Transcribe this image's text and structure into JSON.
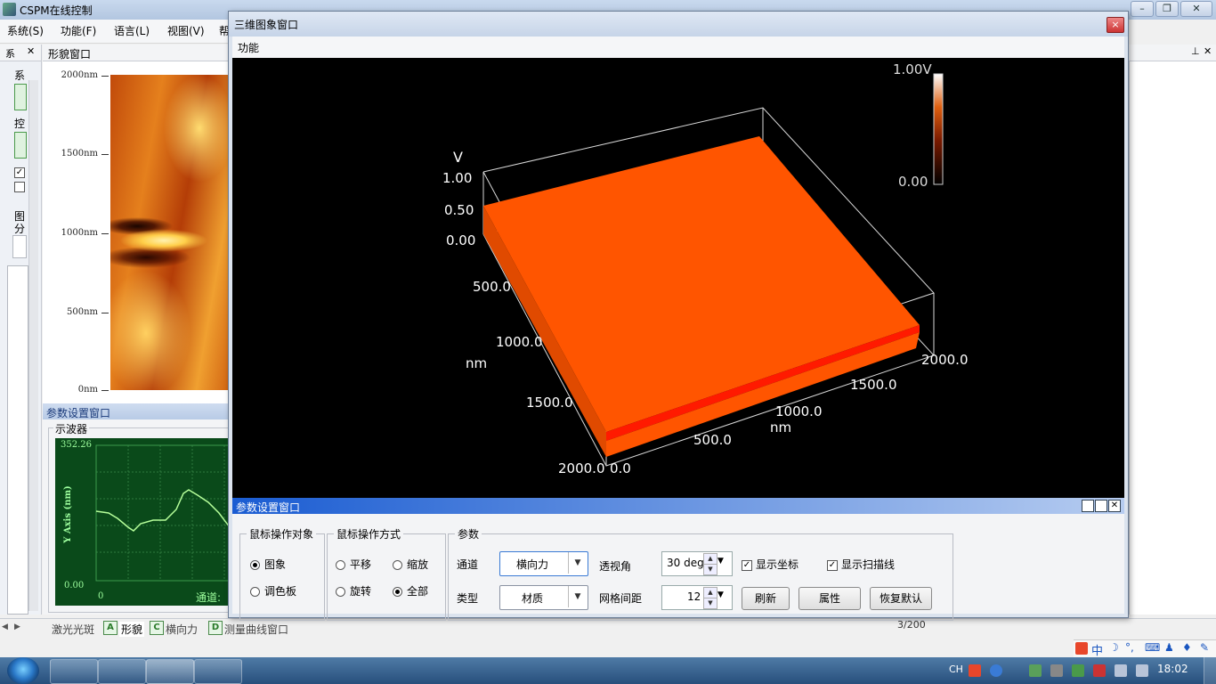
{
  "app": {
    "title": "CSPM在线控制",
    "menu": [
      "系统(S)",
      "功能(F)",
      "语言(L)",
      "视图(V)",
      "帮"
    ],
    "left_panel_tab": "系",
    "image_panel_tab": "形貌窗口",
    "left_panel_labels": [
      "系",
      "控",
      "图",
      "分"
    ]
  },
  "image": {
    "y_ticks": [
      "2000nm",
      "1500nm",
      "1000nm",
      "500nm",
      "0nm"
    ]
  },
  "param_left": {
    "title": "参数设置窗口",
    "group": "示波器",
    "y_max": "352.26",
    "y_min": "0.00",
    "x_start": "0",
    "y_axis_label": "Y Axis (nm)",
    "channel_label": "通道:"
  },
  "bottom_tabs": [
    "激光光斑",
    "形貌",
    "横向力",
    "测量曲线窗口"
  ],
  "bottom_tab_icons": [
    "A",
    "C",
    "D"
  ],
  "status": "3/200",
  "dialog": {
    "title": "三维图象窗口",
    "menu": "功能",
    "close": "×"
  },
  "plot3d": {
    "z_axis_unit": "V",
    "z_ticks": [
      "1.00",
      "0.50",
      "0.00"
    ],
    "y_ticks": [
      "500.0",
      "1000.0",
      "1500.0",
      "2000.0"
    ],
    "y_unit": "nm",
    "x_ticks": [
      "0.0",
      "500.0",
      "1000.0",
      "1500.0",
      "2000.0"
    ],
    "x_unit": "nm",
    "colorbar_max": "1.00V",
    "colorbar_min": "0.00",
    "surface_color": "#ff5500",
    "scanline_color": "#ff1a00"
  },
  "params": {
    "title": "参数设置窗口",
    "mouse_target": {
      "title": "鼠标操作对象",
      "options": [
        "图象",
        "调色板"
      ],
      "selected": "图象"
    },
    "mouse_mode": {
      "title": "鼠标操作方式",
      "options": [
        "平移",
        "缩放",
        "旋转",
        "全部"
      ],
      "selected": "全部"
    },
    "group": "参数",
    "channel_label": "通道",
    "channel_value": "横向力",
    "type_label": "类型",
    "type_value": "材质",
    "perspective_label": "透视角",
    "perspective_value": "30 deg",
    "grid_label": "网格间距",
    "grid_value": "12",
    "show_axes": "显示坐标",
    "show_scanline": "显示扫描线",
    "refresh": "刷新",
    "properties": "属性",
    "restore": "恢复默认"
  },
  "taskbar": {
    "ime": "CH",
    "time": "18:02"
  }
}
